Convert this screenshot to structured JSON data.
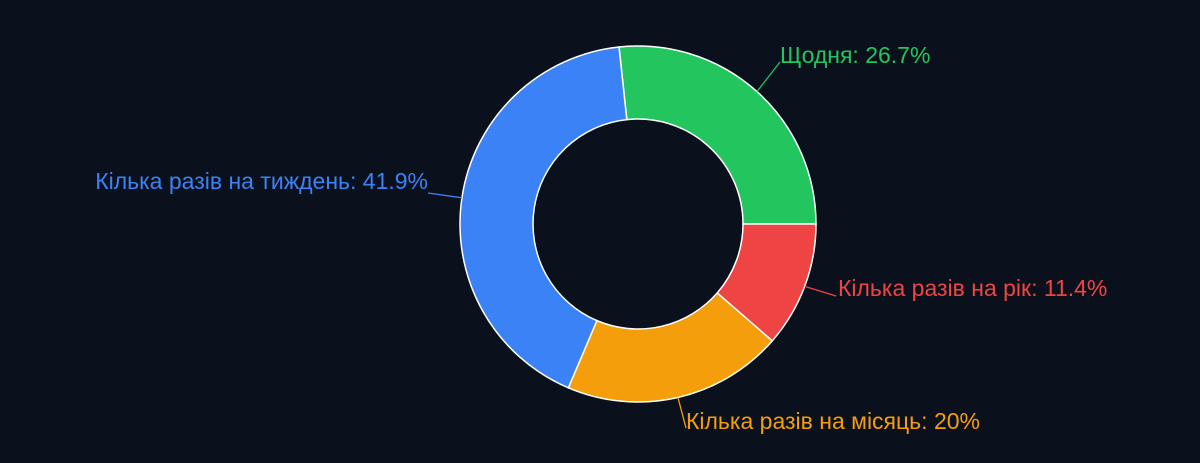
{
  "chart_data": {
    "type": "donut",
    "labels": [
      "Щодня: 26.7%",
      "Кілька разів на рік: 11.4%",
      "Кілька разів на місяць: 20%",
      "Кілька разів на тиждень: 41.9%"
    ],
    "values": [
      26.7,
      11.4,
      20,
      41.9
    ],
    "colors": [
      "#22c55e",
      "#ef4444",
      "#f59e0b",
      "#3b82f6"
    ]
  }
}
